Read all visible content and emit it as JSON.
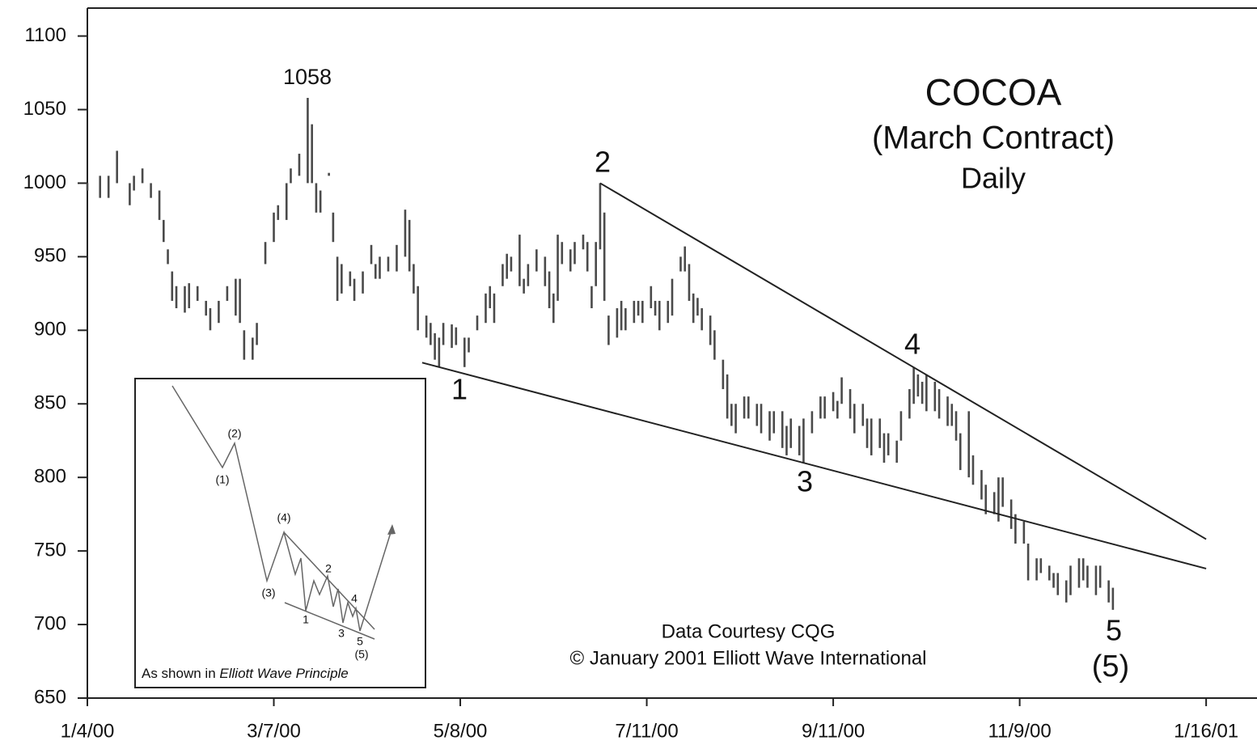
{
  "chart_data": {
    "type": "ohlc",
    "title": "COCOA",
    "subtitle": "(March Contract)",
    "period": "Daily",
    "credits": [
      "Data Courtesy CQG",
      "© January 2001 Elliott Wave International"
    ],
    "color": "#4a4a4a",
    "ylim": [
      650,
      1119
    ],
    "yticks": [
      650,
      700,
      750,
      800,
      850,
      900,
      950,
      1000,
      1050,
      1100
    ],
    "xlim": [
      0,
      276
    ],
    "xticks": [
      {
        "value": 0,
        "label": "1/4/00"
      },
      {
        "value": 44,
        "label": "3/7/00"
      },
      {
        "value": 88,
        "label": "5/8/00"
      },
      {
        "value": 132,
        "label": "7/11/00"
      },
      {
        "value": 176,
        "label": "9/11/00"
      },
      {
        "value": 220,
        "label": "11/9/00"
      },
      {
        "value": 264,
        "label": "1/16/01"
      }
    ],
    "annotations": [
      "1058",
      "1",
      "2",
      "3",
      "4",
      "5",
      "(5)"
    ],
    "trendlines": [
      {
        "x": [
          121,
          264
        ],
        "y": [
          1000,
          758
        ]
      },
      {
        "x": [
          79,
          264
        ],
        "y": [
          878,
          738
        ]
      }
    ],
    "bars": [
      {
        "x": 0,
        "high": 1000,
        "low": 995
      },
      {
        "x": 3,
        "high": 1005,
        "low": 990
      },
      {
        "x": 5,
        "high": 1005,
        "low": 990
      },
      {
        "x": 7,
        "high": 1022,
        "low": 1000
      },
      {
        "x": 10,
        "high": 1000,
        "low": 985
      },
      {
        "x": 11,
        "high": 1005,
        "low": 995
      },
      {
        "x": 13,
        "high": 1010,
        "low": 1000
      },
      {
        "x": 15,
        "high": 1000,
        "low": 990
      },
      {
        "x": 17,
        "high": 995,
        "low": 975
      },
      {
        "x": 18,
        "high": 975,
        "low": 960
      },
      {
        "x": 19,
        "high": 955,
        "low": 945
      },
      {
        "x": 20,
        "high": 940,
        "low": 920
      },
      {
        "x": 21,
        "high": 930,
        "low": 915
      },
      {
        "x": 23,
        "high": 930,
        "low": 912
      },
      {
        "x": 24,
        "high": 932,
        "low": 915
      },
      {
        "x": 26,
        "high": 930,
        "low": 920
      },
      {
        "x": 28,
        "high": 920,
        "low": 910
      },
      {
        "x": 29,
        "high": 915,
        "low": 900
      },
      {
        "x": 31,
        "high": 920,
        "low": 905
      },
      {
        "x": 33,
        "high": 930,
        "low": 920
      },
      {
        "x": 35,
        "high": 935,
        "low": 910
      },
      {
        "x": 36,
        "high": 935,
        "low": 905
      },
      {
        "x": 37,
        "high": 900,
        "low": 880
      },
      {
        "x": 39,
        "high": 895,
        "low": 880
      },
      {
        "x": 40,
        "high": 905,
        "low": 890
      },
      {
        "x": 42,
        "high": 960,
        "low": 945
      },
      {
        "x": 44,
        "high": 980,
        "low": 960
      },
      {
        "x": 45,
        "high": 985,
        "low": 975
      },
      {
        "x": 47,
        "high": 1000,
        "low": 975
      },
      {
        "x": 48,
        "high": 1010,
        "low": 1000
      },
      {
        "x": 50,
        "high": 1020,
        "low": 1005
      },
      {
        "x": 52,
        "high": 1058,
        "low": 1000
      },
      {
        "x": 53,
        "high": 1040,
        "low": 1000
      },
      {
        "x": 54,
        "high": 1000,
        "low": 980
      },
      {
        "x": 55,
        "high": 995,
        "low": 980
      },
      {
        "x": 57,
        "high": 1007,
        "low": 1005
      },
      {
        "x": 58,
        "high": 980,
        "low": 960
      },
      {
        "x": 59,
        "high": 950,
        "low": 920
      },
      {
        "x": 60,
        "high": 945,
        "low": 925
      },
      {
        "x": 62,
        "high": 940,
        "low": 930
      },
      {
        "x": 63,
        "high": 935,
        "low": 920
      },
      {
        "x": 65,
        "high": 940,
        "low": 925
      },
      {
        "x": 67,
        "high": 958,
        "low": 945
      },
      {
        "x": 68,
        "high": 945,
        "low": 935
      },
      {
        "x": 69,
        "high": 950,
        "low": 935
      },
      {
        "x": 71,
        "high": 950,
        "low": 940
      },
      {
        "x": 73,
        "high": 958,
        "low": 940
      },
      {
        "x": 75,
        "high": 982,
        "low": 950
      },
      {
        "x": 76,
        "high": 975,
        "low": 940
      },
      {
        "x": 77,
        "high": 945,
        "low": 925
      },
      {
        "x": 78,
        "high": 930,
        "low": 900
      },
      {
        "x": 80,
        "high": 910,
        "low": 895
      },
      {
        "x": 81,
        "high": 905,
        "low": 890
      },
      {
        "x": 82,
        "high": 898,
        "low": 880
      },
      {
        "x": 83,
        "high": 895,
        "low": 875
      },
      {
        "x": 84,
        "high": 905,
        "low": 890
      },
      {
        "x": 86,
        "high": 904,
        "low": 888
      },
      {
        "x": 87,
        "high": 902,
        "low": 890
      },
      {
        "x": 89,
        "high": 895,
        "low": 875
      },
      {
        "x": 90,
        "high": 895,
        "low": 885
      },
      {
        "x": 92,
        "high": 910,
        "low": 900
      },
      {
        "x": 94,
        "high": 925,
        "low": 905
      },
      {
        "x": 95,
        "high": 930,
        "low": 915
      },
      {
        "x": 96,
        "high": 925,
        "low": 905
      },
      {
        "x": 98,
        "high": 945,
        "low": 930
      },
      {
        "x": 99,
        "high": 952,
        "low": 935
      },
      {
        "x": 100,
        "high": 950,
        "low": 940
      },
      {
        "x": 102,
        "high": 965,
        "low": 930
      },
      {
        "x": 103,
        "high": 935,
        "low": 925
      },
      {
        "x": 104,
        "high": 945,
        "low": 930
      },
      {
        "x": 106,
        "high": 955,
        "low": 940
      },
      {
        "x": 108,
        "high": 950,
        "low": 930
      },
      {
        "x": 109,
        "high": 940,
        "low": 915
      },
      {
        "x": 110,
        "high": 925,
        "low": 905
      },
      {
        "x": 111,
        "high": 965,
        "low": 920
      },
      {
        "x": 112,
        "high": 960,
        "low": 945
      },
      {
        "x": 114,
        "high": 955,
        "low": 940
      },
      {
        "x": 115,
        "high": 960,
        "low": 945
      },
      {
        "x": 117,
        "high": 965,
        "low": 955
      },
      {
        "x": 118,
        "high": 960,
        "low": 940
      },
      {
        "x": 119,
        "high": 930,
        "low": 915
      },
      {
        "x": 120,
        "high": 960,
        "low": 930
      },
      {
        "x": 121,
        "high": 1000,
        "low": 955
      },
      {
        "x": 122,
        "high": 980,
        "low": 920
      },
      {
        "x": 123,
        "high": 910,
        "low": 890
      },
      {
        "x": 125,
        "high": 915,
        "low": 895
      },
      {
        "x": 126,
        "high": 920,
        "low": 900
      },
      {
        "x": 127,
        "high": 915,
        "low": 900
      },
      {
        "x": 129,
        "high": 920,
        "low": 905
      },
      {
        "x": 130,
        "high": 920,
        "low": 910
      },
      {
        "x": 131,
        "high": 920,
        "low": 905
      },
      {
        "x": 133,
        "high": 930,
        "low": 915
      },
      {
        "x": 134,
        "high": 920,
        "low": 910
      },
      {
        "x": 135,
        "high": 920,
        "low": 900
      },
      {
        "x": 137,
        "high": 920,
        "low": 905
      },
      {
        "x": 138,
        "high": 935,
        "low": 910
      },
      {
        "x": 140,
        "high": 950,
        "low": 940
      },
      {
        "x": 141,
        "high": 957,
        "low": 940
      },
      {
        "x": 142,
        "high": 945,
        "low": 920
      },
      {
        "x": 143,
        "high": 925,
        "low": 905
      },
      {
        "x": 144,
        "high": 922,
        "low": 910
      },
      {
        "x": 145,
        "high": 915,
        "low": 900
      },
      {
        "x": 147,
        "high": 910,
        "low": 890
      },
      {
        "x": 148,
        "high": 900,
        "low": 880
      },
      {
        "x": 150,
        "high": 880,
        "low": 860
      },
      {
        "x": 151,
        "high": 870,
        "low": 840
      },
      {
        "x": 152,
        "high": 850,
        "low": 835
      },
      {
        "x": 153,
        "high": 850,
        "low": 830
      },
      {
        "x": 155,
        "high": 855,
        "low": 840
      },
      {
        "x": 156,
        "high": 855,
        "low": 840
      },
      {
        "x": 158,
        "high": 850,
        "low": 835
      },
      {
        "x": 159,
        "high": 850,
        "low": 830
      },
      {
        "x": 161,
        "high": 845,
        "low": 825
      },
      {
        "x": 162,
        "high": 845,
        "low": 830
      },
      {
        "x": 164,
        "high": 845,
        "low": 820
      },
      {
        "x": 165,
        "high": 835,
        "low": 815
      },
      {
        "x": 166,
        "high": 840,
        "low": 820
      },
      {
        "x": 168,
        "high": 835,
        "low": 815
      },
      {
        "x": 169,
        "high": 840,
        "low": 810
      },
      {
        "x": 171,
        "high": 845,
        "low": 830
      },
      {
        "x": 173,
        "high": 855,
        "low": 840
      },
      {
        "x": 174,
        "high": 855,
        "low": 840
      },
      {
        "x": 176,
        "high": 858,
        "low": 845
      },
      {
        "x": 177,
        "high": 852,
        "low": 840
      },
      {
        "x": 178,
        "high": 868,
        "low": 850
      },
      {
        "x": 180,
        "high": 860,
        "low": 840
      },
      {
        "x": 181,
        "high": 850,
        "low": 830
      },
      {
        "x": 183,
        "high": 850,
        "low": 835
      },
      {
        "x": 184,
        "high": 840,
        "low": 820
      },
      {
        "x": 185,
        "high": 840,
        "low": 815
      },
      {
        "x": 187,
        "high": 840,
        "low": 820
      },
      {
        "x": 188,
        "high": 830,
        "low": 810
      },
      {
        "x": 189,
        "high": 830,
        "low": 815
      },
      {
        "x": 191,
        "high": 825,
        "low": 810
      },
      {
        "x": 192,
        "high": 845,
        "low": 825
      },
      {
        "x": 194,
        "high": 860,
        "low": 840
      },
      {
        "x": 195,
        "high": 875,
        "low": 850
      },
      {
        "x": 196,
        "high": 870,
        "low": 855
      },
      {
        "x": 197,
        "high": 865,
        "low": 850
      },
      {
        "x": 198,
        "high": 870,
        "low": 845
      },
      {
        "x": 200,
        "high": 865,
        "low": 845
      },
      {
        "x": 201,
        "high": 860,
        "low": 840
      },
      {
        "x": 203,
        "high": 855,
        "low": 835
      },
      {
        "x": 204,
        "high": 850,
        "low": 835
      },
      {
        "x": 205,
        "high": 845,
        "low": 825
      },
      {
        "x": 206,
        "high": 830,
        "low": 805
      },
      {
        "x": 208,
        "high": 845,
        "low": 800
      },
      {
        "x": 209,
        "high": 815,
        "low": 795
      },
      {
        "x": 211,
        "high": 805,
        "low": 785
      },
      {
        "x": 212,
        "high": 795,
        "low": 775
      },
      {
        "x": 214,
        "high": 790,
        "low": 775
      },
      {
        "x": 215,
        "high": 800,
        "low": 770
      },
      {
        "x": 216,
        "high": 800,
        "low": 780
      },
      {
        "x": 218,
        "high": 785,
        "low": 765
      },
      {
        "x": 219,
        "high": 775,
        "low": 755
      },
      {
        "x": 221,
        "high": 770,
        "low": 755
      },
      {
        "x": 222,
        "high": 755,
        "low": 730
      },
      {
        "x": 224,
        "high": 745,
        "low": 730
      },
      {
        "x": 225,
        "high": 745,
        "low": 735
      },
      {
        "x": 227,
        "high": 740,
        "low": 730
      },
      {
        "x": 228,
        "high": 735,
        "low": 725
      },
      {
        "x": 229,
        "high": 735,
        "low": 720
      },
      {
        "x": 231,
        "high": 730,
        "low": 715
      },
      {
        "x": 232,
        "high": 740,
        "low": 720
      },
      {
        "x": 234,
        "high": 745,
        "low": 725
      },
      {
        "x": 235,
        "high": 745,
        "low": 730
      },
      {
        "x": 236,
        "high": 740,
        "low": 725
      },
      {
        "x": 238,
        "high": 740,
        "low": 720
      },
      {
        "x": 239,
        "high": 740,
        "low": 725
      },
      {
        "x": 241,
        "high": 730,
        "low": 715
      },
      {
        "x": 242,
        "high": 725,
        "low": 710
      }
    ],
    "inset": {
      "labels": [
        "(1)",
        "(2)",
        "(3)",
        "(4)",
        "1",
        "2",
        "3",
        "4",
        "5",
        "(5)"
      ],
      "caption": [
        "As shown in",
        "Elliott Wave Principle"
      ]
    }
  }
}
